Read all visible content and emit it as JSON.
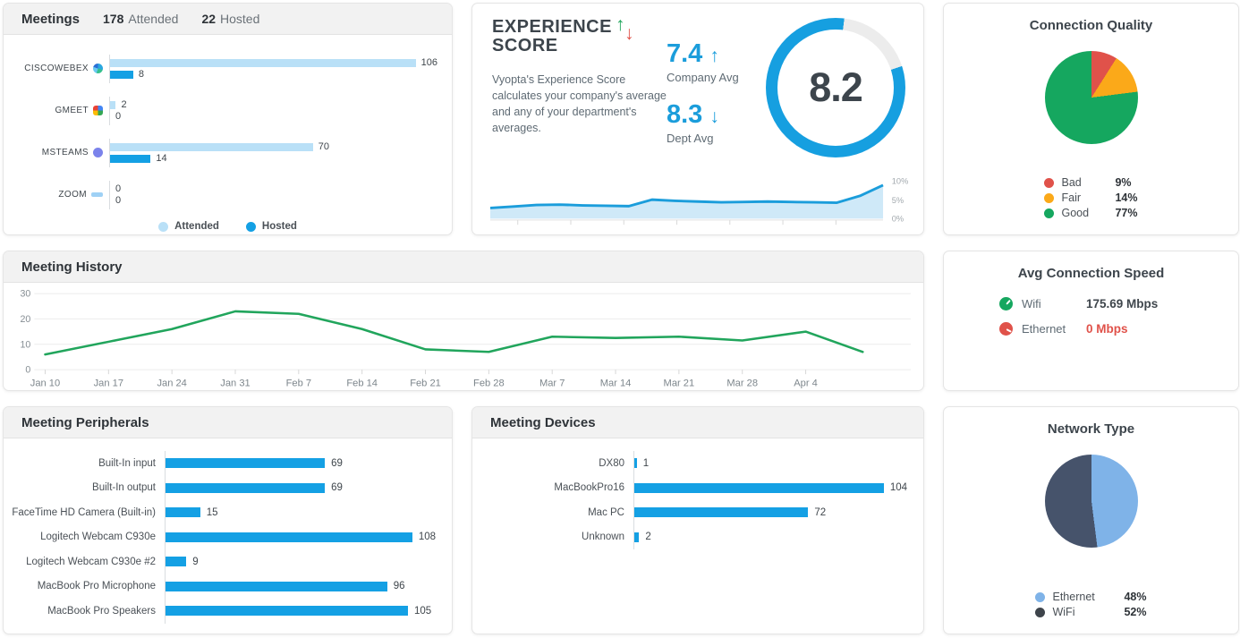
{
  "meetings": {
    "title": "Meetings",
    "stats": [
      {
        "value": "178",
        "label": "Attended"
      },
      {
        "value": "22",
        "label": "Hosted"
      }
    ],
    "legend": [
      {
        "label": "Attended",
        "color": "#b9e0f7"
      },
      {
        "label": "Hosted",
        "color": "#14a0e4"
      }
    ],
    "chart_data": {
      "type": "bar",
      "orientation": "horizontal",
      "categories": [
        "CISCOWEBEX",
        "GMEET",
        "MSTEAMS",
        "ZOOM"
      ],
      "icons": [
        "webex-icon",
        "gmeet-icon",
        "msteams-icon",
        "zoom-icon"
      ],
      "series": [
        {
          "name": "Attended",
          "color": "#b9e0f7",
          "values": [
            106,
            2,
            70,
            0
          ]
        },
        {
          "name": "Hosted",
          "color": "#14a0e4",
          "values": [
            8,
            0,
            14,
            0
          ]
        }
      ],
      "xmax": 113
    }
  },
  "experience": {
    "title_lines": [
      "EXPERIENCE",
      "SCORE"
    ],
    "up_arrow": "↑",
    "down_arrow": "↓",
    "description": "Vyopta's Experience Score calculates your company's average and any of your department's averages.",
    "company": {
      "value": "7.4",
      "arrow": "↑",
      "label": "Company Avg"
    },
    "dept": {
      "value": "8.3",
      "arrow": "↓",
      "label": "Dept Avg"
    },
    "gauge": {
      "value": "8.2",
      "percent": 82,
      "color": "#169fe0",
      "track": "#ececec"
    },
    "sparkline": {
      "type": "area",
      "values": [
        2.8,
        3.2,
        3.6,
        3.7,
        3.5,
        3.4,
        3.3,
        5.0,
        4.7,
        4.5,
        4.3,
        4.4,
        4.5,
        4.4,
        4.3,
        4.2,
        6.0,
        8.8
      ],
      "ylim": [
        0,
        10
      ],
      "yticks": [
        "10%",
        "5%",
        "0%"
      ],
      "line_color": "#1b9ddb",
      "fill_color": "#cfe9f8"
    }
  },
  "connection_quality": {
    "title": "Connection Quality",
    "chart_data": {
      "type": "pie",
      "unit": "%",
      "slices": [
        {
          "label": "Bad",
          "value": 9,
          "color": "#e0524a"
        },
        {
          "label": "Fair",
          "value": 14,
          "color": "#fba919"
        },
        {
          "label": "Good",
          "value": 77,
          "color": "#15a75f"
        }
      ]
    }
  },
  "meeting_history": {
    "title": "Meeting History",
    "chart_data": {
      "type": "line",
      "color": "#21a55c",
      "ylim": [
        0,
        30
      ],
      "yticks": [
        0,
        10,
        20,
        30
      ],
      "categories": [
        "Jan 10",
        "Jan 17",
        "Jan 24",
        "Jan 31",
        "Feb 7",
        "Feb 14",
        "Feb 21",
        "Feb 28",
        "Mar 7",
        "Mar 14",
        "Mar 21",
        "Mar 28",
        "Apr 4",
        ""
      ],
      "values": [
        6,
        11,
        16,
        23,
        22,
        16,
        8,
        7,
        13,
        12.5,
        13,
        11.5,
        15,
        7
      ]
    }
  },
  "avg_speed": {
    "title": "Avg Connection Speed",
    "rows": [
      {
        "icon": "wifi-gauge-icon",
        "icon_color": "#15a75f",
        "label": "Wifi",
        "value": "175.69 Mbps",
        "value_color": "#3f464c"
      },
      {
        "icon": "ethernet-gauge-icon",
        "icon_color": "#e0524a",
        "label": "Ethernet",
        "value": "0 Mbps",
        "value_color": "#e0524a"
      }
    ]
  },
  "peripherals": {
    "title": "Meeting Peripherals",
    "chart_data": {
      "type": "bar",
      "orientation": "horizontal",
      "color": "#14a0e4",
      "categories": [
        "Built-In input",
        "Built-In output",
        "FaceTime HD Camera (Built-in)",
        "Logitech Webcam C930e",
        "Logitech Webcam C930e #2",
        "MacBook Pro Microphone",
        "MacBook Pro Speakers"
      ],
      "values": [
        69,
        69,
        15,
        108,
        9,
        96,
        105
      ],
      "xmax": 117
    }
  },
  "devices": {
    "title": "Meeting Devices",
    "chart_data": {
      "type": "bar",
      "orientation": "horizontal",
      "color": "#14a0e4",
      "categories": [
        "DX80",
        "MacBookPro16",
        "Mac PC",
        "Unknown"
      ],
      "values": [
        1,
        104,
        72,
        2
      ],
      "xmax": 113
    }
  },
  "network_type": {
    "title": "Network Type",
    "chart_data": {
      "type": "pie",
      "unit": "%",
      "slices": [
        {
          "label": "Ethernet",
          "value": 48,
          "color": "#7fb3e8",
          "legend_color": "#7fb3e8"
        },
        {
          "label": "WiFi",
          "value": 52,
          "color": "#46536b",
          "legend_color": "#3e444b"
        }
      ]
    }
  }
}
